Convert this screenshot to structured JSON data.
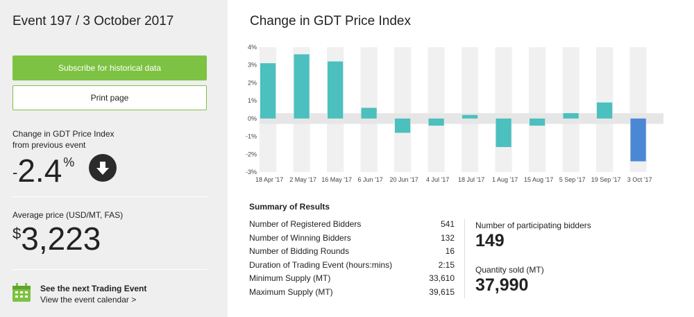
{
  "event": {
    "title": "Event 197 / 3 October 2017"
  },
  "buttons": {
    "subscribe": "Subscribe for historical data",
    "print": "Print page"
  },
  "change": {
    "label_line1": "Change in GDT Price Index",
    "label_line2": "from previous event",
    "sign": "-",
    "value": "2.4",
    "unit": "%",
    "direction_icon": "arrow-down-circle-icon"
  },
  "average_price": {
    "label": "Average price (USD/MT, FAS)",
    "currency": "$",
    "value": "3,223"
  },
  "next_event": {
    "title": "See the next Trading Event",
    "link": "View the event calendar >",
    "icon": "calendar-icon"
  },
  "chart_title": "Change in GDT Price Index",
  "chart_data": {
    "type": "bar",
    "categories": [
      "18 Apr '17",
      "2 May '17",
      "16 May '17",
      "6 Jun '17",
      "20 Jun '17",
      "4 Jul '17",
      "18 Jul '17",
      "1 Aug '17",
      "15 Aug '17",
      "5 Sep '17",
      "19 Sep '17",
      "3 Oct '17"
    ],
    "values": [
      3.1,
      3.6,
      3.2,
      0.6,
      -0.8,
      -0.4,
      0.2,
      -1.6,
      -0.4,
      0.3,
      0.9,
      -2.4
    ],
    "y_ticks": [
      "4%",
      "3%",
      "2%",
      "1%",
      "0%",
      "-1%",
      "-2%",
      "-3%"
    ],
    "ylim": [
      -3,
      4
    ],
    "colors": {
      "positive": "#4cbfbf",
      "latest": "#4a88d6",
      "band": "#e6e6e6"
    }
  },
  "summary": {
    "title": "Summary of Results",
    "rows": [
      {
        "label": "Number of Registered Bidders",
        "value": "541"
      },
      {
        "label": "Number of Winning Bidders",
        "value": "132"
      },
      {
        "label": "Number of Bidding Rounds",
        "value": "16"
      },
      {
        "label": "Duration of Trading Event (hours:mins)",
        "value": "2:15"
      },
      {
        "label": "Minimum Supply (MT)",
        "value": "33,610"
      },
      {
        "label": "Maximum Supply (MT)",
        "value": "39,615"
      }
    ],
    "participating_label": "Number of participating bidders",
    "participating_value": "149",
    "quantity_label": "Quantity sold (MT)",
    "quantity_value": "37,990"
  }
}
